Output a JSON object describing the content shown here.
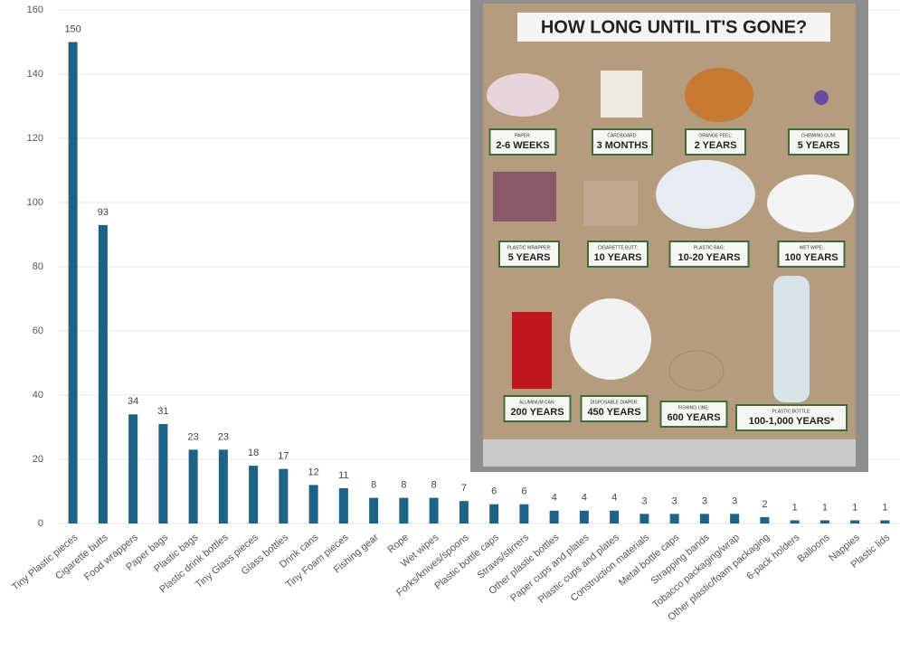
{
  "chart_data": {
    "type": "bar",
    "categories": [
      "Tiny Plastic pieces",
      "Cigarette butts",
      "Food wrappers",
      "Paper bags",
      "Plastic bags",
      "Plastic drink bottles",
      "Tiny Glass pieces",
      "Glass bottles",
      "Drink cans",
      "Tiny Foam pieces",
      "Fishing gear",
      "Rope",
      "Wet wipes",
      "Forks/knives/spoons",
      "Plastic bottle caps",
      "Straws/stirrers",
      "Other plastic bottles",
      "Paper cups and plates",
      "Plastic cups and plates",
      "Construction materials",
      "Metal bottle caps",
      "Strapping bands",
      "Tobacco packaging/wrap",
      "Other plastic/foam packaging",
      "6-pack holders",
      "Balloons",
      "Nappies",
      "Plastic lids"
    ],
    "values": [
      150,
      93,
      34,
      31,
      23,
      23,
      18,
      17,
      12,
      11,
      8,
      8,
      8,
      7,
      6,
      6,
      4,
      4,
      4,
      3,
      3,
      3,
      3,
      2,
      1,
      1,
      1,
      1
    ],
    "color": "#1d6385",
    "ylim": [
      0,
      160
    ],
    "yticks": [
      0,
      20,
      40,
      60,
      80,
      100,
      120,
      140,
      160
    ],
    "grid": true
  },
  "inset": {
    "title": "HOW LONG UNTIL IT'S GONE?",
    "items": [
      {
        "caption": "PAPER:",
        "duration": "2-6 WEEKS"
      },
      {
        "caption": "CARDBOARD:",
        "duration": "3 MONTHS"
      },
      {
        "caption": "ORANGE PEEL:",
        "duration": "2 YEARS"
      },
      {
        "caption": "CHEWING GUM:",
        "duration": "5 YEARS"
      },
      {
        "caption": "PLASTIC WRAPPER:",
        "duration": "5 YEARS"
      },
      {
        "caption": "CIGARETTE BUTT:",
        "duration": "10 YEARS"
      },
      {
        "caption": "PLASTIC BAG:",
        "duration": "10-20 YEARS"
      },
      {
        "caption": "WET WIPE:",
        "duration": "100 YEARS"
      },
      {
        "caption": "ALUMINUM CAN:",
        "duration": "200 YEARS"
      },
      {
        "caption": "DISPOSABLE DIAPER:",
        "duration": "450 YEARS"
      },
      {
        "caption": "FISHING LINE:",
        "duration": "600 YEARS"
      },
      {
        "caption": "PLASTIC BOTTLE:",
        "duration": "100-1,000 YEARS*"
      }
    ]
  }
}
